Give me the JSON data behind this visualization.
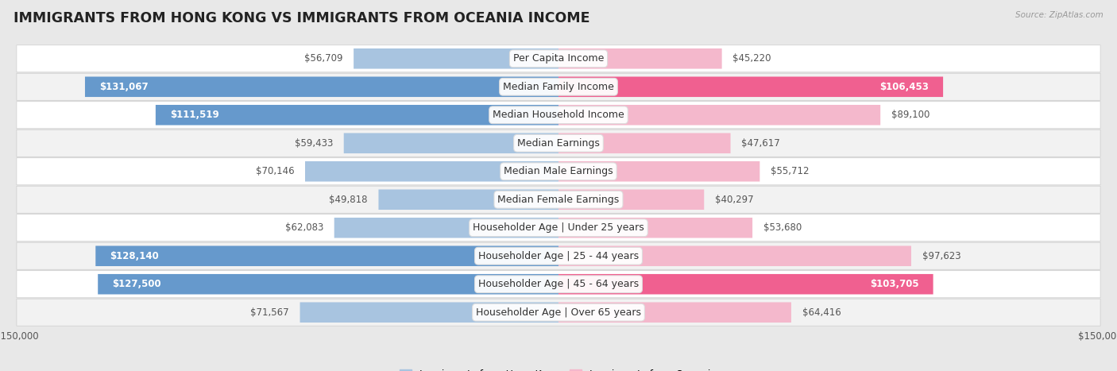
{
  "title": "IMMIGRANTS FROM HONG KONG VS IMMIGRANTS FROM OCEANIA INCOME",
  "source": "Source: ZipAtlas.com",
  "categories": [
    "Per Capita Income",
    "Median Family Income",
    "Median Household Income",
    "Median Earnings",
    "Median Male Earnings",
    "Median Female Earnings",
    "Householder Age | Under 25 years",
    "Householder Age | 25 - 44 years",
    "Householder Age | 45 - 64 years",
    "Householder Age | Over 65 years"
  ],
  "hk_values": [
    56709,
    131067,
    111519,
    59433,
    70146,
    49818,
    62083,
    128140,
    127500,
    71567
  ],
  "oc_values": [
    45220,
    106453,
    89100,
    47617,
    55712,
    40297,
    53680,
    97623,
    103705,
    64416
  ],
  "hk_color_light": "#a8c4e0",
  "hk_color_dark": "#6699cc",
  "oc_color_light": "#f4b8cc",
  "oc_color_dark": "#f06090",
  "hk_threshold": 100000,
  "oc_threshold": 100000,
  "xlim": 150000,
  "bar_height": 0.72,
  "bg_color": "#e8e8e8",
  "row_colors": [
    "#ffffff",
    "#f2f2f2"
  ],
  "label_fontsize": 9.0,
  "value_fontsize": 8.5,
  "title_fontsize": 12.5,
  "legend_fontsize": 9.0
}
